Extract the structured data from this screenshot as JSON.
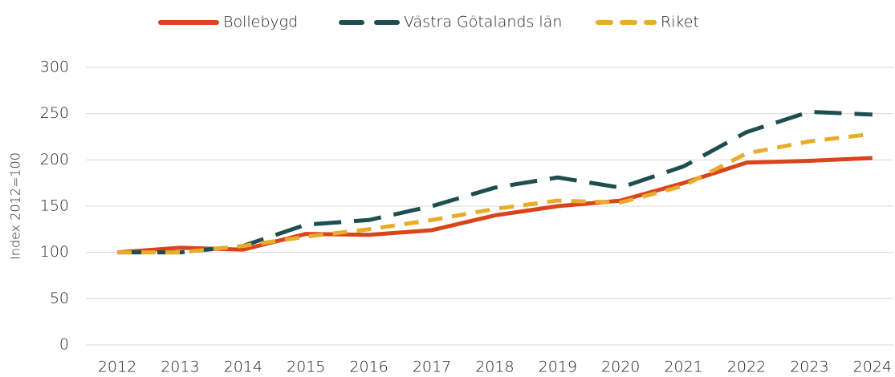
{
  "chart_data": {
    "type": "line",
    "y_label": "Index 2012=100",
    "categories": [
      "2012",
      "2013",
      "2014",
      "2015",
      "2016",
      "2017",
      "2018",
      "2019",
      "2020",
      "2021",
      "2022",
      "2023",
      "2024"
    ],
    "series": [
      {
        "name": "Bollebygd",
        "color": "#d9441a",
        "dash": "solid",
        "values": [
          100,
          105,
          103,
          120,
          119,
          124,
          140,
          150,
          156,
          175,
          197,
          199,
          202
        ]
      },
      {
        "name": "Västra Götalands län",
        "color": "#1e4e4f",
        "dash": "long",
        "values": [
          100,
          100,
          107,
          130,
          135,
          150,
          170,
          181,
          170,
          193,
          230,
          252,
          249
        ]
      },
      {
        "name": "Riket",
        "color": "#e8ab2a",
        "dash": "short",
        "values": [
          100,
          100,
          107,
          117,
          125,
          135,
          147,
          156,
          154,
          172,
          207,
          220,
          228
        ]
      }
    ],
    "ylim": [
      0,
      300
    ],
    "yticks": [
      0,
      50,
      100,
      150,
      200,
      250,
      300
    ],
    "grid": true,
    "legend": "top"
  }
}
